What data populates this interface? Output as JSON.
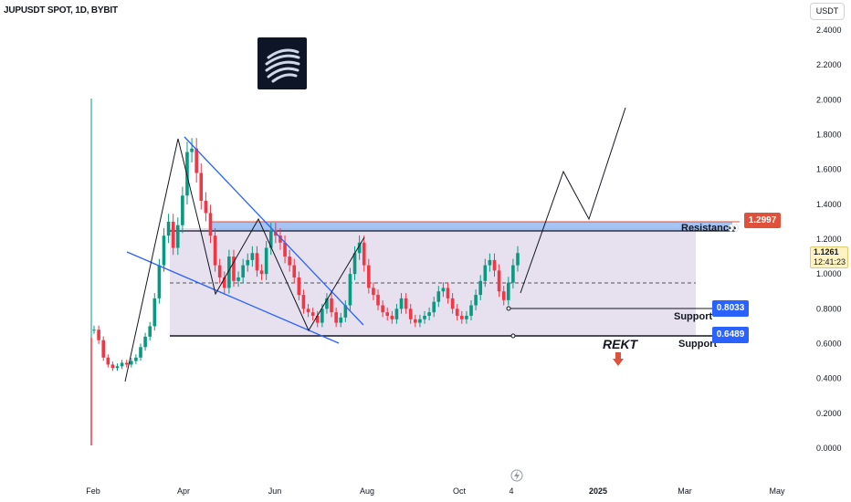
{
  "header": {
    "title": "JUPUSDT SPOT, 1D, BYBIT",
    "unit_button": "USDT"
  },
  "current_price": {
    "value": "1.1261",
    "countdown": "12:41:23"
  },
  "annotations": {
    "resistance_label": "Resistance",
    "resistance_value": "1.2997",
    "support_label_1": "Support",
    "support_value_1": "0.8033",
    "support_label_2": "Support",
    "support_value_2": "0.6489",
    "rekt_label": "REKT"
  },
  "colors": {
    "up": "#089981",
    "down": "#f23645",
    "trendline": "#2962ff",
    "range_fill": "#ddd6ea",
    "resistance_band": "#8fb5f0"
  },
  "chart_data": {
    "type": "candlestick",
    "title": "JUPUSDT SPOT, 1D, BYBIT",
    "x_tick_labels": [
      "Feb",
      "Apr",
      "Jun",
      "Aug",
      "Oct",
      "4",
      "2025",
      "Mar",
      "May"
    ],
    "y_tick_labels": [
      "2.4000",
      "2.2000",
      "2.0000",
      "1.8000",
      "1.6000",
      "1.4000",
      "1.2000",
      "1.0000",
      "0.8000",
      "0.6000",
      "0.4000",
      "0.2000",
      "0.0000"
    ],
    "ylim": [
      -0.05,
      2.45
    ],
    "levels": {
      "resistance": 1.2997,
      "range_top": 1.25,
      "range_mid": 0.95,
      "support_1": 0.8033,
      "support_2": 0.6489
    },
    "close_series_approx": [
      0.68,
      0.62,
      0.52,
      0.48,
      0.46,
      0.47,
      0.49,
      0.48,
      0.5,
      0.52,
      0.58,
      0.64,
      0.7,
      0.86,
      1.05,
      1.22,
      1.3,
      1.15,
      1.28,
      1.45,
      1.7,
      1.72,
      1.58,
      1.42,
      1.35,
      1.22,
      1.05,
      0.98,
      0.92,
      1.1,
      0.96,
      0.98,
      1.05,
      1.08,
      1.12,
      1.02,
      1.0,
      1.15,
      1.25,
      1.22,
      1.18,
      1.1,
      1.05,
      0.98,
      0.88,
      0.8,
      0.78,
      0.76,
      0.72,
      0.8,
      0.86,
      0.78,
      0.72,
      0.75,
      0.82,
      1.0,
      1.12,
      1.18,
      1.05,
      0.92,
      0.88,
      0.82,
      0.78,
      0.76,
      0.74,
      0.8,
      0.86,
      0.8,
      0.74,
      0.72,
      0.74,
      0.76,
      0.78,
      0.84,
      0.9,
      0.92,
      0.86,
      0.8,
      0.76,
      0.74,
      0.76,
      0.82,
      0.88,
      0.96,
      1.05,
      1.08,
      1.02,
      0.9,
      0.85,
      0.95,
      1.05,
      1.12
    ]
  }
}
